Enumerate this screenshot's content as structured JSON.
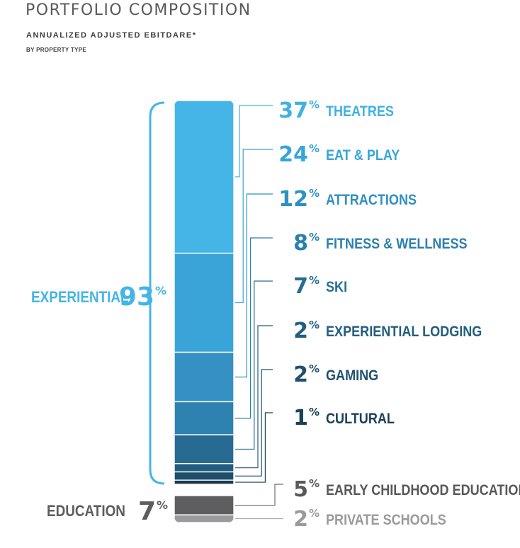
{
  "header": {
    "title": "PORTFOLIO COMPOSITION",
    "subtitle": "ANNUALIZED ADJUSTED EBITDARE*",
    "subsubtitle": "BY PROPERTY TYPE"
  },
  "chart_data": {
    "type": "stacked-bar",
    "title": "PORTFOLIO COMPOSITION",
    "subtitle": "ANNUALIZED ADJUSTED EBITDARE*",
    "note": "BY PROPERTY TYPE",
    "unit": "%",
    "groups": [
      {
        "name": "EXPERIENTIAL",
        "total": 93,
        "color": "#45b5e8",
        "segments": [
          {
            "name": "THEATRES",
            "value": 37,
            "fill": "#45b5e8",
            "label_color": "#3fb1e3"
          },
          {
            "name": "EAT & PLAY",
            "value": 24,
            "fill": "#3aa4d8",
            "label_color": "#36a5da"
          },
          {
            "name": "ATTRACTIONS",
            "value": 12,
            "fill": "#3591c3",
            "label_color": "#2f90c2"
          },
          {
            "name": "FITNESS & WELLNESS",
            "value": 8,
            "fill": "#2e82b0",
            "label_color": "#2a80ad"
          },
          {
            "name": "SKI",
            "value": 7,
            "fill": "#276a92",
            "label_color": "#256d93"
          },
          {
            "name": "EXPERIENTIAL LODGING",
            "value": 2,
            "fill": "#215c7e",
            "label_color": "#235e80"
          },
          {
            "name": "GAMING",
            "value": 2,
            "fill": "#1d4d68",
            "label_color": "#1f506d"
          },
          {
            "name": "CULTURAL",
            "value": 1,
            "fill": "#163a50",
            "label_color": "#1a4158"
          }
        ]
      },
      {
        "name": "EDUCATION",
        "total": 7,
        "color": "#5d5d5f",
        "segments": [
          {
            "name": "EARLY CHILDHOOD EDUCATION",
            "value": 5,
            "fill": "#5e5e60",
            "label_color": "#58585a"
          },
          {
            "name": "PRIVATE SCHOOLS",
            "value": 2,
            "fill": "#9a9a9c",
            "label_color": "#9a9a9c"
          }
        ]
      }
    ]
  }
}
